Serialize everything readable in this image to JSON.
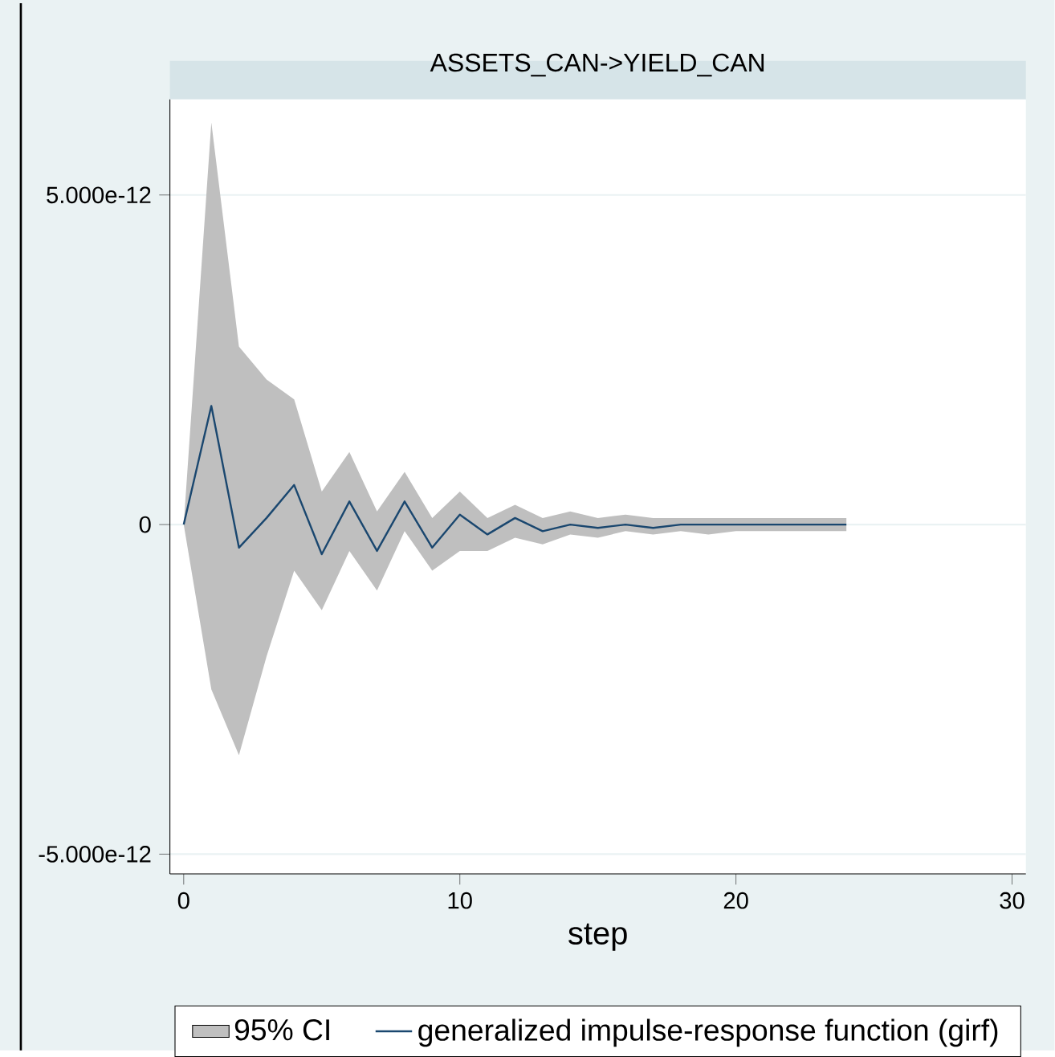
{
  "chart_data": {
    "type": "line",
    "title": "ASSETS_CAN->YIELD_CAN",
    "xlabel": "step",
    "x": [
      0,
      1,
      2,
      3,
      4,
      5,
      6,
      7,
      8,
      9,
      10,
      11,
      12,
      13,
      14,
      15,
      16,
      17,
      18,
      19,
      20,
      21,
      22,
      23,
      24
    ],
    "series": [
      {
        "name": "95% CI",
        "type": "area",
        "color": "#bfbfbf",
        "values": [
          null,
          null,
          null,
          null,
          null,
          null,
          null,
          null,
          null,
          null,
          null,
          null,
          null,
          null,
          null,
          null,
          null,
          null,
          null,
          null,
          null,
          null,
          null,
          null,
          null
        ],
        "lower": [
          0,
          -2.5e-12,
          -3.5e-12,
          -2e-12,
          -7e-13,
          -1.3e-12,
          -4e-13,
          -1e-12,
          -1e-13,
          -7e-13,
          -4e-13,
          -4e-13,
          -2e-13,
          -3e-13,
          -1.5e-13,
          -2e-13,
          -1e-13,
          -1.5e-13,
          -1e-13,
          -1.5e-13,
          -1e-13,
          -1e-13,
          -1e-13,
          -1e-13,
          -1e-13
        ],
        "upper": [
          0,
          6.1e-12,
          2.7e-12,
          2.2e-12,
          1.9e-12,
          5e-13,
          1.1e-12,
          2e-13,
          8e-13,
          1e-13,
          5e-13,
          1e-13,
          3e-13,
          1e-13,
          2e-13,
          1e-13,
          1.5e-13,
          1e-13,
          1e-13,
          1e-13,
          1e-13,
          1e-13,
          1e-13,
          1e-13,
          1e-13
        ]
      },
      {
        "name": "generalized impulse-response function (girf)",
        "type": "line",
        "color": "#1a476f",
        "values": [
          0,
          1.8e-12,
          -3.5e-13,
          1e-13,
          6e-13,
          -4.5e-13,
          3.5e-13,
          -4e-13,
          3.5e-13,
          -3.5e-13,
          1.5e-13,
          -1.5e-13,
          1e-13,
          -1e-13,
          0,
          -5e-14,
          0,
          -5e-14,
          0,
          0,
          0,
          0,
          0,
          0,
          0
        ]
      }
    ],
    "xlim": [
      -0.5,
      30.5
    ],
    "xticks": [
      0,
      10,
      20,
      30
    ],
    "ylim": [
      -5.3e-12,
      6.45e-12
    ],
    "yticks": [
      {
        "value": -5e-12,
        "label": "-5.000e-12"
      },
      0,
      {
        "value": 5e-12,
        "label": "5.000e-12"
      }
    ],
    "grid": "y",
    "legend": "bottom",
    "marker": "none",
    "line_style": "solid"
  }
}
